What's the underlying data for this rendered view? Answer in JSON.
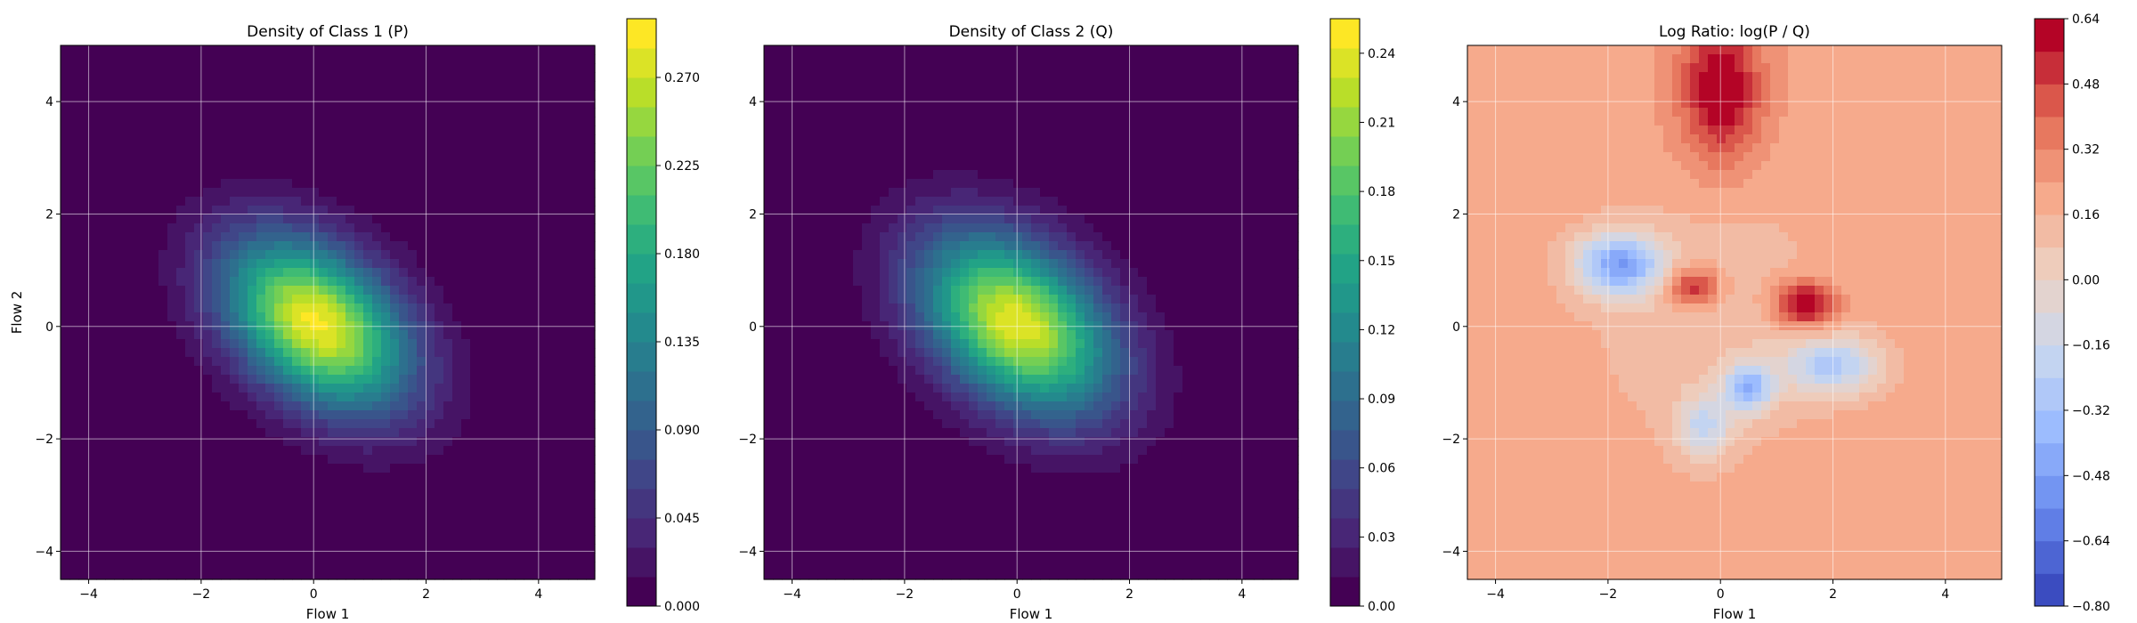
{
  "chart_data": [
    {
      "type": "heatmap",
      "title": "Density of Class 1 (P)",
      "xlabel": "Flow 1",
      "ylabel": "Flow 2",
      "xlim": [
        -4.5,
        5.0
      ],
      "ylim": [
        -4.5,
        5.0
      ],
      "xticks": [
        -4,
        -2,
        0,
        2,
        4
      ],
      "yticks": [
        -4,
        -2,
        0,
        2,
        4
      ],
      "grid": true,
      "colormap": "viridis",
      "colorbar": {
        "min": 0.0,
        "max": 0.3,
        "ticks": [
          0.0,
          0.045,
          0.09,
          0.135,
          0.18,
          0.225,
          0.27
        ],
        "tick_labels": [
          "0.000",
          "0.045",
          "0.090",
          "0.135",
          "0.180",
          "0.225",
          "0.270"
        ]
      },
      "density": {
        "center": [
          0.05,
          0.05
        ],
        "sigma_major": 1.3,
        "sigma_minor": 0.85,
        "angle_deg": -40,
        "peak": 0.29
      }
    },
    {
      "type": "heatmap",
      "title": "Density of Class 2 (Q)",
      "xlabel": "Flow 1",
      "ylabel": "",
      "xlim": [
        -4.5,
        5.0
      ],
      "ylim": [
        -4.5,
        5.0
      ],
      "xticks": [
        -4,
        -2,
        0,
        2,
        4
      ],
      "yticks": [
        -4,
        -2,
        0,
        2,
        4
      ],
      "grid": true,
      "colormap": "viridis",
      "colorbar": {
        "min": 0.0,
        "max": 0.255,
        "ticks": [
          0.0,
          0.03,
          0.06,
          0.09,
          0.12,
          0.15,
          0.18,
          0.21,
          0.24
        ],
        "tick_labels": [
          "0.00",
          "0.03",
          "0.06",
          "0.09",
          "0.12",
          "0.15",
          "0.18",
          "0.21",
          "0.24"
        ]
      },
      "density": {
        "center": [
          0.0,
          0.05
        ],
        "sigma_major": 1.35,
        "sigma_minor": 0.9,
        "angle_deg": -40,
        "peak": 0.24
      }
    },
    {
      "type": "heatmap",
      "title": "Log Ratio: log(P / Q)",
      "xlabel": "Flow 1",
      "ylabel": "",
      "xlim": [
        -4.5,
        5.0
      ],
      "ylim": [
        -4.5,
        5.0
      ],
      "xticks": [
        -4,
        -2,
        0,
        2,
        4
      ],
      "yticks": [
        -4,
        -2,
        0,
        2,
        4
      ],
      "grid": true,
      "colormap": "coolwarm",
      "colorbar": {
        "min": -0.8,
        "max": 0.64,
        "ticks": [
          -0.8,
          -0.64,
          -0.48,
          -0.32,
          -0.16,
          0.0,
          0.16,
          0.32,
          0.48,
          0.64
        ],
        "tick_labels": [
          "−0.80",
          "−0.64",
          "−0.48",
          "−0.32",
          "−0.16",
          "0.00",
          "0.16",
          "0.32",
          "0.48",
          "0.64"
        ]
      },
      "features": {
        "background_value": 0.22,
        "blobs": [
          {
            "x": -1.8,
            "y": 1.1,
            "value": -0.65,
            "sx": 0.55,
            "sy": 0.4
          },
          {
            "x": 2.0,
            "y": -0.7,
            "value": -0.45,
            "sx": 0.6,
            "sy": 0.35
          },
          {
            "x": 0.5,
            "y": -1.1,
            "value": -0.55,
            "sx": 0.3,
            "sy": 0.3
          },
          {
            "x": -0.3,
            "y": -1.8,
            "value": -0.35,
            "sx": 0.35,
            "sy": 0.4
          },
          {
            "x": 1.5,
            "y": 0.4,
            "value": 0.5,
            "sx": 0.4,
            "sy": 0.3
          },
          {
            "x": -0.5,
            "y": 0.7,
            "value": 0.4,
            "sx": 0.35,
            "sy": 0.25
          },
          {
            "x": 0.0,
            "y": 4.2,
            "value": 0.45,
            "sx": 0.5,
            "sy": 0.9
          }
        ]
      }
    }
  ]
}
